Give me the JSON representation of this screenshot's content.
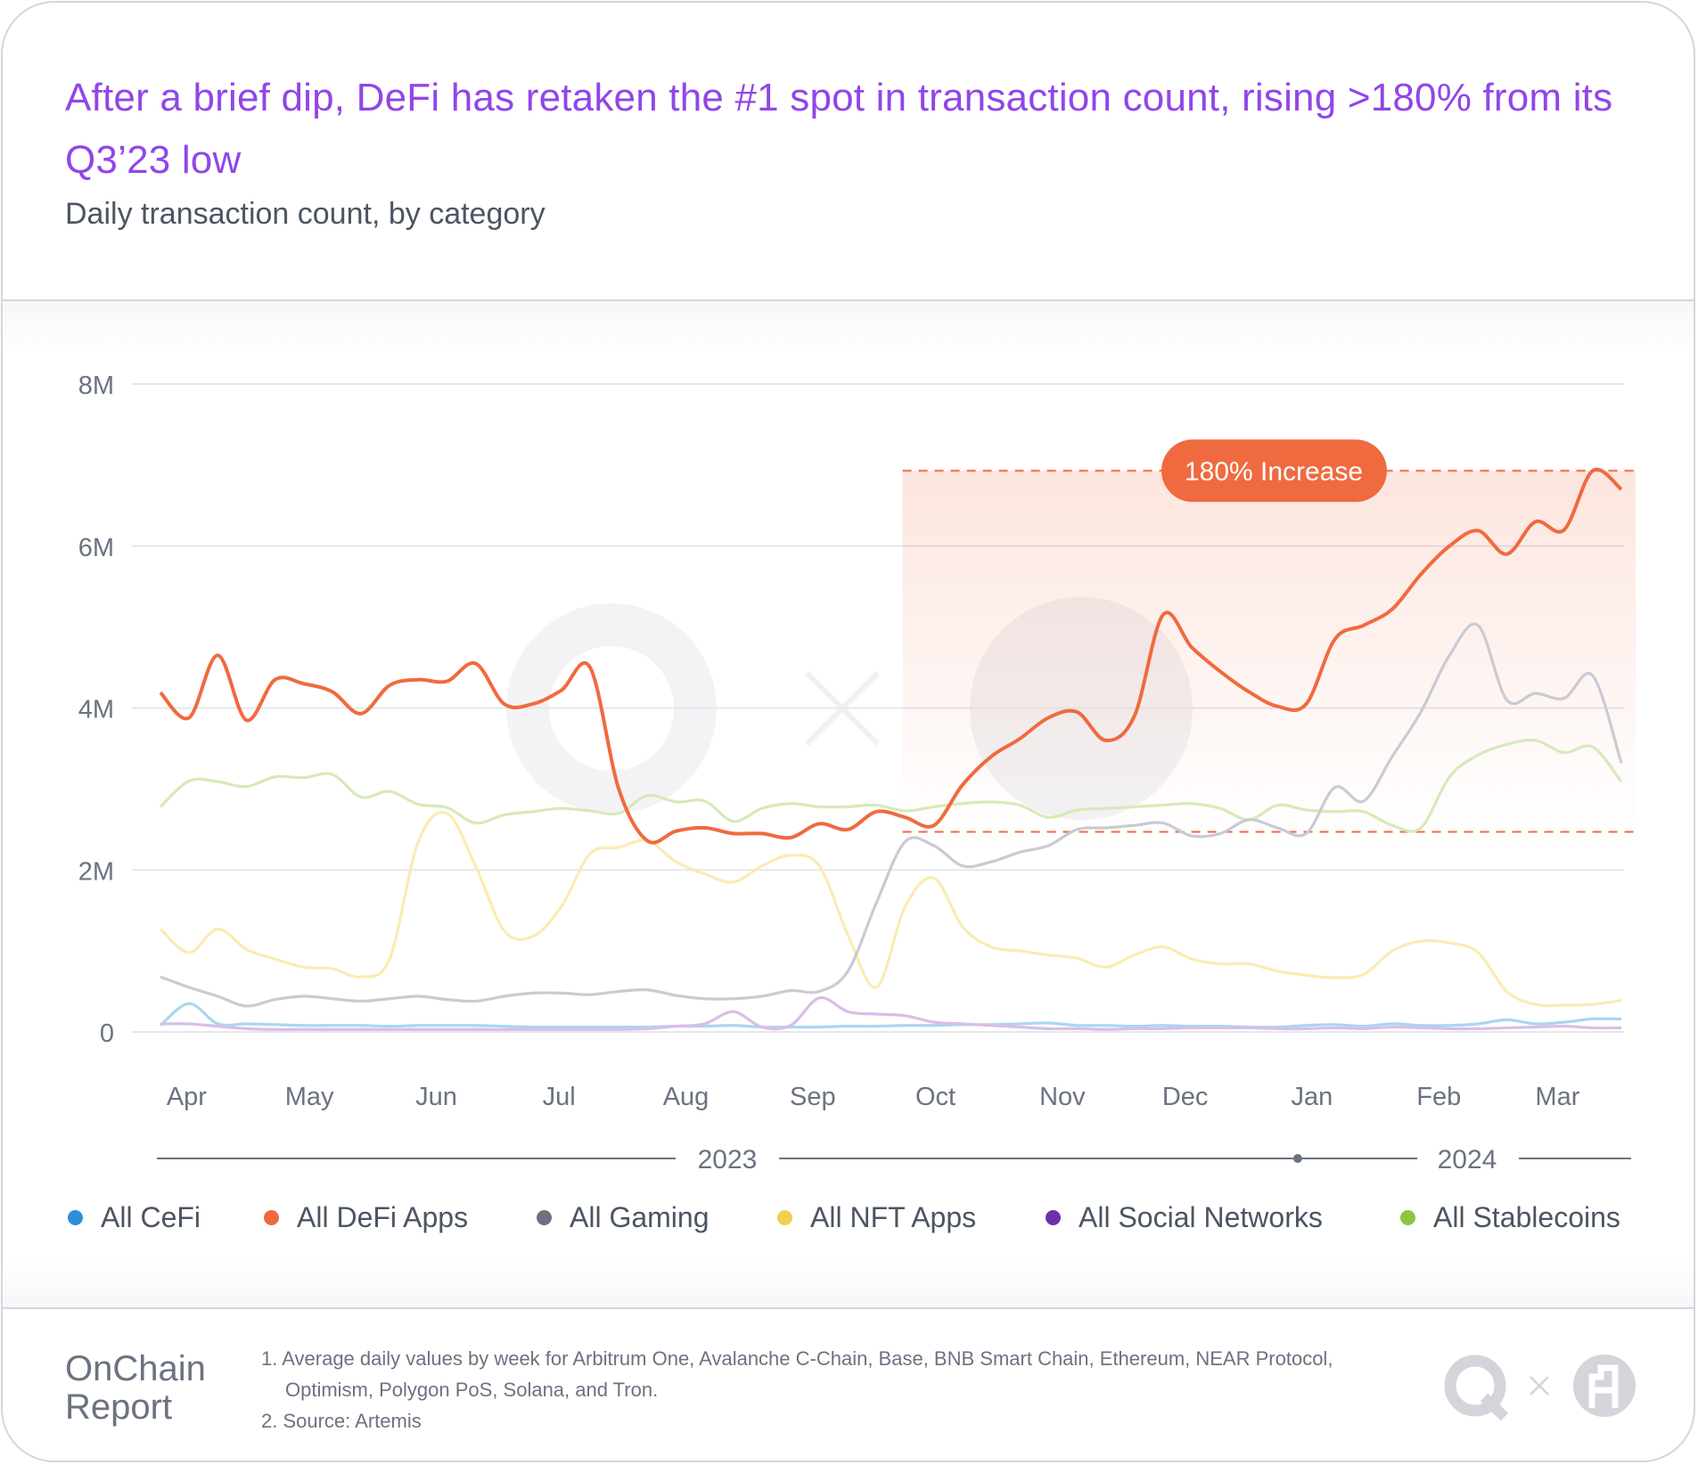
{
  "header": {
    "title": "After a brief dip, DeFi has retaken the #1 spot in transaction count, rising >180% from its Q3’23 low",
    "subtitle": "Daily transaction count, by category"
  },
  "chart_data": {
    "type": "line",
    "title": "After a brief dip, DeFi has retaken the #1 spot in transaction count, rising >180% from its Q3’23 low",
    "subtitle": "Daily transaction count, by category",
    "xlabel": "",
    "ylabel": "",
    "y_unit": "M",
    "ylim": [
      0,
      8
    ],
    "y_ticks": [
      0,
      2,
      4,
      6,
      8
    ],
    "y_tick_labels": [
      "0",
      "2M",
      "4M",
      "6M",
      "8M"
    ],
    "grid": true,
    "legend_position": "bottom",
    "month_labels": [
      {
        "label": "Apr",
        "date": "2023-04-01"
      },
      {
        "label": "May",
        "date": "2023-05-01"
      },
      {
        "label": "Jun",
        "date": "2023-06-01"
      },
      {
        "label": "Jul",
        "date": "2023-07-01"
      },
      {
        "label": "Aug",
        "date": "2023-08-01"
      },
      {
        "label": "Sep",
        "date": "2023-09-01"
      },
      {
        "label": "Oct",
        "date": "2023-10-01"
      },
      {
        "label": "Nov",
        "date": "2023-11-01"
      },
      {
        "label": "Dec",
        "date": "2023-12-01"
      },
      {
        "label": "Jan",
        "date": "2024-01-01"
      },
      {
        "label": "Feb",
        "date": "2024-02-01"
      },
      {
        "label": "Mar",
        "date": "2024-03-01"
      }
    ],
    "year_labels": [
      "2023",
      "2024"
    ],
    "x": [
      "2023-04-02",
      "2023-04-09",
      "2023-04-16",
      "2023-04-23",
      "2023-04-30",
      "2023-05-07",
      "2023-05-14",
      "2023-05-21",
      "2023-05-28",
      "2023-06-04",
      "2023-06-11",
      "2023-06-18",
      "2023-06-25",
      "2023-07-02",
      "2023-07-09",
      "2023-07-16",
      "2023-07-23",
      "2023-07-30",
      "2023-08-06",
      "2023-08-13",
      "2023-08-20",
      "2023-08-27",
      "2023-09-03",
      "2023-09-10",
      "2023-09-17",
      "2023-09-24",
      "2023-10-01",
      "2023-10-08",
      "2023-10-15",
      "2023-10-22",
      "2023-10-29",
      "2023-11-05",
      "2023-11-12",
      "2023-11-19",
      "2023-11-26",
      "2023-12-03",
      "2023-12-10",
      "2023-12-17",
      "2023-12-24",
      "2023-12-31",
      "2024-01-07",
      "2024-01-14",
      "2024-01-21",
      "2024-01-28",
      "2024-02-04",
      "2024-02-11",
      "2024-02-18",
      "2024-02-25",
      "2024-03-03",
      "2024-03-10",
      "2024-03-17",
      "2024-03-24"
    ],
    "series": [
      {
        "name": "All CeFi",
        "color": "#2a90d6",
        "line_color": "#a9d6f0",
        "values": [
          0.08,
          0.35,
          0.1,
          0.1,
          0.09,
          0.08,
          0.08,
          0.08,
          0.07,
          0.08,
          0.08,
          0.08,
          0.07,
          0.06,
          0.06,
          0.06,
          0.06,
          0.06,
          0.07,
          0.07,
          0.08,
          0.06,
          0.06,
          0.06,
          0.07,
          0.07,
          0.08,
          0.08,
          0.09,
          0.09,
          0.1,
          0.11,
          0.08,
          0.08,
          0.07,
          0.08,
          0.07,
          0.07,
          0.06,
          0.06,
          0.08,
          0.09,
          0.07,
          0.1,
          0.08,
          0.08,
          0.1,
          0.15,
          0.1,
          0.12,
          0.16,
          0.16
        ]
      },
      {
        "name": "All DeFi Apps",
        "color": "#f06a40",
        "line_color": "#f06a40",
        "values": [
          4.19,
          3.88,
          4.65,
          3.85,
          4.35,
          4.3,
          4.2,
          3.93,
          4.28,
          4.35,
          4.33,
          4.55,
          4.05,
          4.05,
          4.22,
          4.5,
          3.0,
          2.36,
          2.48,
          2.52,
          2.45,
          2.45,
          2.4,
          2.57,
          2.5,
          2.72,
          2.65,
          2.55,
          3.05,
          3.4,
          3.62,
          3.88,
          3.95,
          3.6,
          3.9,
          5.15,
          4.75,
          4.45,
          4.2,
          4.02,
          4.05,
          4.85,
          5.02,
          5.22,
          5.65,
          6.0,
          6.19,
          5.9,
          6.3,
          6.2,
          6.93,
          6.7
        ]
      },
      {
        "name": "All Gaming",
        "color": "#6b7280",
        "line_color": "#cacad3",
        "values": [
          0.68,
          0.55,
          0.44,
          0.32,
          0.4,
          0.44,
          0.41,
          0.38,
          0.41,
          0.44,
          0.4,
          0.38,
          0.44,
          0.48,
          0.48,
          0.46,
          0.5,
          0.52,
          0.45,
          0.41,
          0.41,
          0.44,
          0.51,
          0.5,
          0.75,
          1.6,
          2.35,
          2.3,
          2.05,
          2.1,
          2.22,
          2.3,
          2.5,
          2.52,
          2.55,
          2.58,
          2.42,
          2.45,
          2.62,
          2.52,
          2.45,
          3.02,
          2.85,
          3.4,
          3.95,
          4.65,
          5.02,
          4.1,
          4.18,
          4.12,
          4.4,
          3.32
        ]
      },
      {
        "name": "All NFT Apps",
        "color": "#f0d050",
        "line_color": "#fbebb3",
        "values": [
          1.27,
          0.98,
          1.27,
          1.02,
          0.9,
          0.8,
          0.78,
          0.68,
          0.9,
          2.35,
          2.7,
          2.05,
          1.25,
          1.18,
          1.55,
          2.2,
          2.28,
          2.36,
          2.1,
          1.95,
          1.85,
          2.05,
          2.18,
          2.05,
          1.2,
          0.55,
          1.55,
          1.9,
          1.3,
          1.05,
          1.0,
          0.95,
          0.91,
          0.8,
          0.95,
          1.05,
          0.9,
          0.84,
          0.84,
          0.75,
          0.7,
          0.67,
          0.71,
          1.0,
          1.12,
          1.1,
          0.98,
          0.5,
          0.34,
          0.33,
          0.34,
          0.39
        ]
      },
      {
        "name": "All Social Networks",
        "color": "#6e2fa8",
        "line_color": "#d9bde8",
        "values": [
          0.1,
          0.1,
          0.07,
          0.04,
          0.03,
          0.03,
          0.03,
          0.03,
          0.03,
          0.03,
          0.03,
          0.03,
          0.03,
          0.03,
          0.03,
          0.03,
          0.03,
          0.04,
          0.07,
          0.1,
          0.25,
          0.06,
          0.08,
          0.42,
          0.25,
          0.22,
          0.2,
          0.12,
          0.1,
          0.08,
          0.06,
          0.04,
          0.04,
          0.03,
          0.04,
          0.04,
          0.05,
          0.05,
          0.05,
          0.04,
          0.04,
          0.05,
          0.04,
          0.06,
          0.05,
          0.04,
          0.04,
          0.05,
          0.06,
          0.07,
          0.05,
          0.05
        ]
      },
      {
        "name": "All Stablecoins",
        "color": "#8cc63f",
        "line_color": "#d6eab8",
        "values": [
          2.78,
          3.1,
          3.09,
          3.03,
          3.15,
          3.14,
          3.18,
          2.9,
          2.97,
          2.81,
          2.77,
          2.58,
          2.68,
          2.72,
          2.76,
          2.73,
          2.7,
          2.92,
          2.84,
          2.85,
          2.6,
          2.76,
          2.82,
          2.78,
          2.78,
          2.8,
          2.73,
          2.78,
          2.82,
          2.84,
          2.8,
          2.65,
          2.74,
          2.76,
          2.78,
          2.8,
          2.82,
          2.76,
          2.62,
          2.8,
          2.74,
          2.72,
          2.72,
          2.55,
          2.52,
          3.15,
          3.42,
          3.55,
          3.6,
          3.45,
          3.52,
          3.09
        ]
      }
    ],
    "annotations": [
      {
        "label": "180% Increase",
        "type": "range-band",
        "from_date": "2023-10-01",
        "low": 2.47,
        "high": 6.93,
        "color": "#f06a40"
      }
    ]
  },
  "footer": {
    "brand_line1": "OnChain",
    "brand_line2": "Report",
    "note1_line1": "1. Average daily values by week for Arbitrum One, Avalanche C-Chain, Base, BNB Smart Chain, Ethereum, NEAR Protocol,",
    "note1_line2": "Optimism, Polygon PoS, Solana, and Tron.",
    "note2": "2. Source: Artemis",
    "logos": [
      "q-logo-icon",
      "times-icon",
      "artemis-logo-icon"
    ]
  }
}
